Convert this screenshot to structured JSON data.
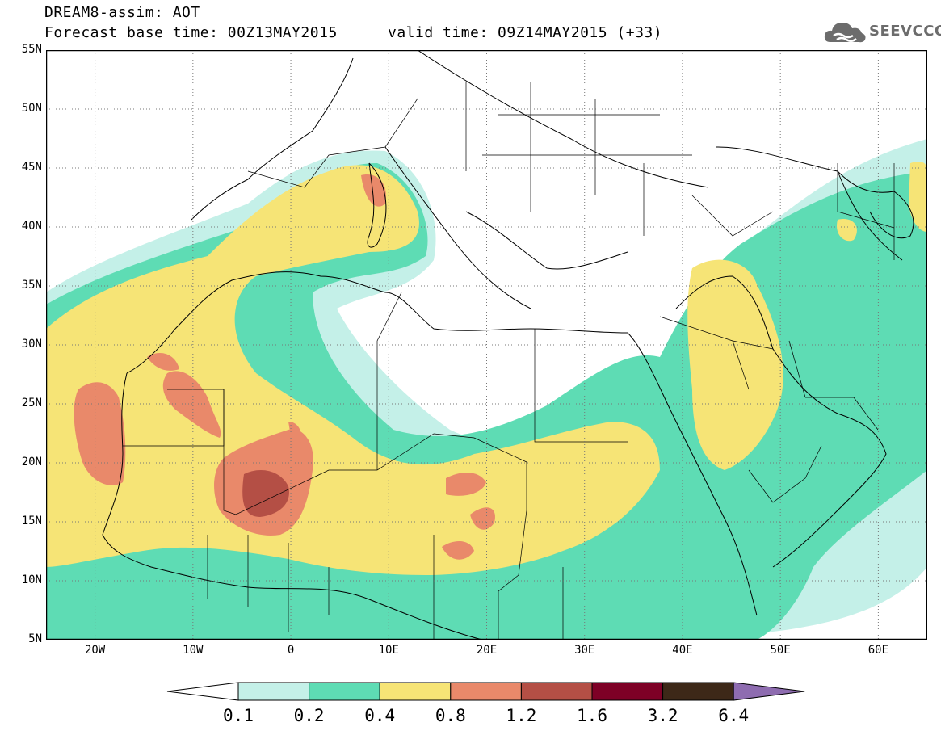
{
  "title": {
    "line1": "DREAM8-assim: AOT",
    "line2": "Forecast base time: 00Z13MAY2015",
    "valid": "valid time: 09Z14MAY2015 (+33)"
  },
  "logo": {
    "text": "SEEVCCC",
    "icon": "cloud-icon"
  },
  "chart_data": {
    "type": "heatmap",
    "variable": "AOT",
    "x_ticks": [
      "20W",
      "10W",
      "0",
      "10E",
      "20E",
      "30E",
      "40E",
      "50E",
      "60E"
    ],
    "y_ticks": [
      "55N",
      "50N",
      "45N",
      "40N",
      "35N",
      "30N",
      "25N",
      "20N",
      "15N",
      "10N",
      "5N"
    ],
    "lon_range": [
      -25,
      65
    ],
    "lat_range": [
      5,
      55
    ],
    "levels": [
      "0.1",
      "0.2",
      "0.4",
      "0.8",
      "1.2",
      "1.6",
      "3.2",
      "6.4"
    ],
    "colors": [
      "#c4f0e8",
      "#5edcb4",
      "#f6e476",
      "#e9896a",
      "#b44f45",
      "#7e0026",
      "#3d2818",
      "#8e6cb0"
    ],
    "grid": true
  }
}
